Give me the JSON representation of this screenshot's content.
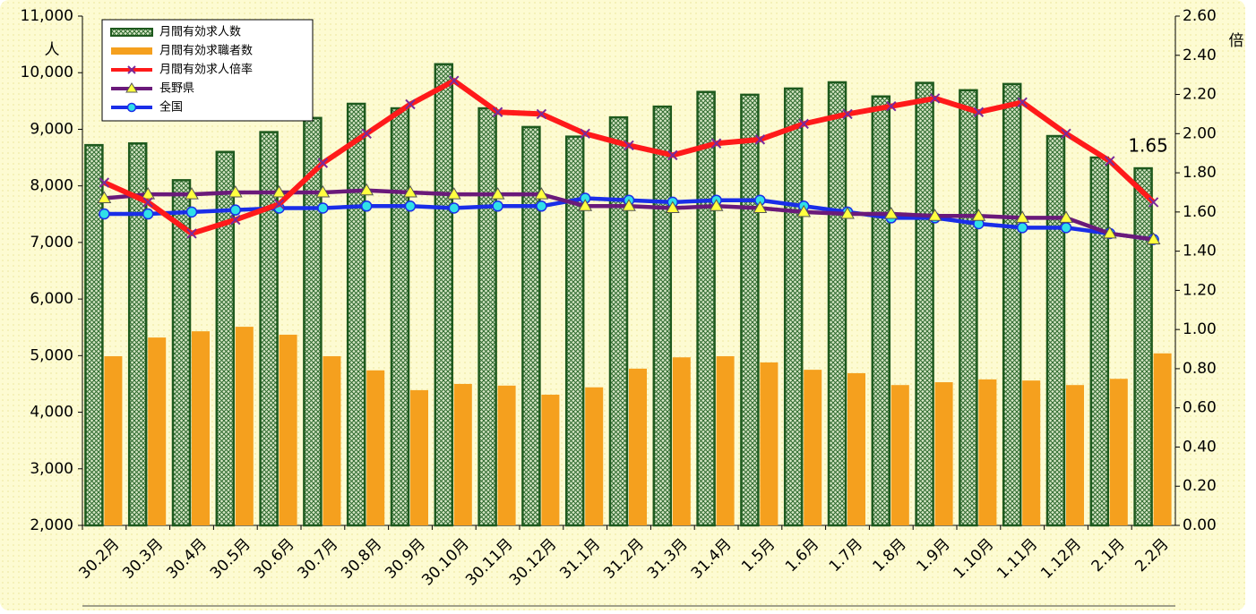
{
  "chart_data": {
    "type": "combo",
    "y_label": "人",
    "y2_label": "倍",
    "annotation": "1.65",
    "categories": [
      "30.2月",
      "30.3月",
      "30.4月",
      "30.5月",
      "30.6月",
      "30.7月",
      "30.8月",
      "30.9月",
      "30.10月",
      "30.11月",
      "30.12月",
      "31.1月",
      "31.2月",
      "31.3月",
      "31.4月",
      "1.5月",
      "1.6月",
      "1.7月",
      "1.8月",
      "1.9月",
      "1.10月",
      "1.11月",
      "1.12月",
      "2.1月",
      "2.2月"
    ],
    "ylim": [
      2000,
      11000
    ],
    "yticks": [
      {
        "value": 2000,
        "label": "2,000"
      },
      {
        "value": 3000,
        "label": "3,000"
      },
      {
        "value": 4000,
        "label": "4,000"
      },
      {
        "value": 5000,
        "label": "5,000"
      },
      {
        "value": 6000,
        "label": "6,000"
      },
      {
        "value": 7000,
        "label": "7,000"
      },
      {
        "value": 8000,
        "label": "8,000"
      },
      {
        "value": 9000,
        "label": "9,000"
      },
      {
        "value": 10000,
        "label": "10,000"
      },
      {
        "value": 11000,
        "label": "11,000"
      }
    ],
    "y2lim": [
      0,
      2.6
    ],
    "y2ticks": [
      {
        "value": 0,
        "label": "0.00"
      },
      {
        "value": 0.2,
        "label": "0.20"
      },
      {
        "value": 0.4,
        "label": "0.40"
      },
      {
        "value": 0.6,
        "label": "0.60"
      },
      {
        "value": 0.8,
        "label": "0.80"
      },
      {
        "value": 1,
        "label": "1.00"
      },
      {
        "value": 1.2,
        "label": "1.20"
      },
      {
        "value": 1.4,
        "label": "1.40"
      },
      {
        "value": 1.6,
        "label": "1.60"
      },
      {
        "value": 1.8,
        "label": "1.80"
      },
      {
        "value": 2,
        "label": "2.00"
      },
      {
        "value": 2.2,
        "label": "2.20"
      },
      {
        "value": 2.4,
        "label": "2.40"
      },
      {
        "value": 2.6,
        "label": "2.60"
      }
    ],
    "series": [
      {
        "name": "月間有効求人数",
        "type": "bar",
        "color": "#1e5a1e",
        "values": [
          8720,
          8750,
          8100,
          8600,
          8950,
          9200,
          9450,
          9370,
          10150,
          9370,
          9040,
          8870,
          9210,
          9400,
          9660,
          9610,
          9720,
          9830,
          9580,
          9820,
          9690,
          9800,
          8880,
          8500,
          8310
        ]
      },
      {
        "name": "月間有効求職者数",
        "type": "bar",
        "color": "#f5a01e",
        "values": [
          4990,
          5320,
          5430,
          5510,
          5370,
          4990,
          4740,
          4390,
          4500,
          4470,
          4310,
          4440,
          4770,
          4970,
          4990,
          4880,
          4750,
          4690,
          4480,
          4530,
          4580,
          4560,
          4480,
          4590,
          5040
        ]
      },
      {
        "name": "月間有効求人倍率",
        "type": "line",
        "axis": "y2",
        "color": "#ff1a1a",
        "marker": "x",
        "marker_color": "#7a2a9a",
        "values": [
          1.75,
          1.65,
          1.49,
          1.56,
          1.64,
          1.85,
          2.0,
          2.15,
          2.27,
          2.11,
          2.1,
          2.0,
          1.94,
          1.89,
          1.95,
          1.97,
          2.05,
          2.1,
          2.14,
          2.18,
          2.11,
          2.16,
          2.0,
          1.86,
          1.65
        ]
      },
      {
        "name": "長野県",
        "type": "line",
        "axis": "y2",
        "color": "#6a1a7a",
        "marker": "triangle",
        "marker_color": "#ffff40",
        "values": [
          1.67,
          1.69,
          1.69,
          1.7,
          1.7,
          1.7,
          1.71,
          1.7,
          1.69,
          1.69,
          1.69,
          1.63,
          1.63,
          1.62,
          1.63,
          1.62,
          1.6,
          1.59,
          1.59,
          1.58,
          1.58,
          1.57,
          1.57,
          1.49,
          1.46
        ]
      },
      {
        "name": "全国",
        "type": "line",
        "axis": "y2",
        "color": "#1a2ee8",
        "marker": "circle",
        "marker_color": "#30e0e8",
        "values": [
          1.59,
          1.59,
          1.6,
          1.61,
          1.62,
          1.62,
          1.63,
          1.63,
          1.62,
          1.63,
          1.63,
          1.67,
          1.66,
          1.65,
          1.66,
          1.66,
          1.63,
          1.6,
          1.57,
          1.57,
          1.54,
          1.52,
          1.52,
          1.49,
          1.46
        ]
      }
    ]
  }
}
